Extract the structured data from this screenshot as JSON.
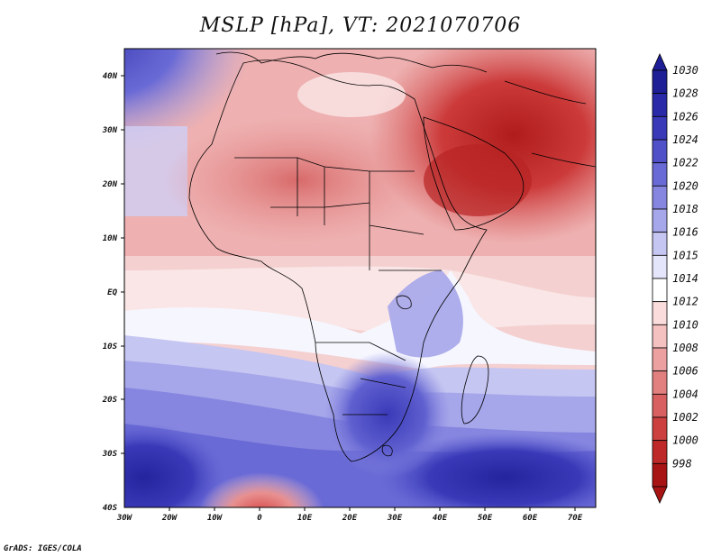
{
  "title": "MSLP [hPa], VT: 2021070706",
  "footer": "GrADS: IGES/COLA",
  "map": {
    "lat_ticks": [
      "40N",
      "30N",
      "20N",
      "10N",
      "EQ",
      "10S",
      "20S",
      "30S",
      "40S"
    ],
    "lon_ticks": [
      "30W",
      "20W",
      "10W",
      "0",
      "10E",
      "20E",
      "30E",
      "40E",
      "50E",
      "60E",
      "70E"
    ]
  },
  "colorbar": {
    "levels": [
      "1030",
      "1028",
      "1026",
      "1024",
      "1022",
      "1020",
      "1018",
      "1016",
      "1015",
      "1014",
      "1012",
      "1010",
      "1008",
      "1006",
      "1004",
      "1002",
      "1000",
      "998"
    ],
    "colors": [
      "#1e1e96",
      "#2a2aa8",
      "#3a3ab8",
      "#5050c8",
      "#6a6ad6",
      "#8686e0",
      "#a6a6ea",
      "#c6c6f2",
      "#e4e4fa",
      "#ffffff",
      "#fadcdc",
      "#f4c0c0",
      "#eca0a0",
      "#e28080",
      "#d86060",
      "#cc4040",
      "#be2828",
      "#a81414"
    ]
  }
}
